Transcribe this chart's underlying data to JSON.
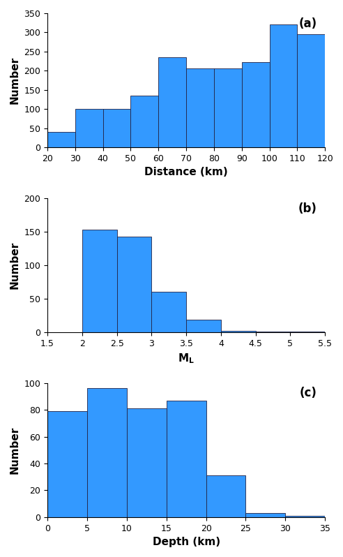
{
  "panel_a": {
    "bin_edges": [
      20,
      30,
      40,
      50,
      60,
      70,
      80,
      90,
      100,
      110,
      120
    ],
    "heights": [
      40,
      100,
      100,
      135,
      235,
      205,
      205,
      222,
      320,
      295
    ],
    "xlabel": "Distance (km)",
    "ylabel": "Number",
    "ylim": [
      0,
      350
    ],
    "xlim": [
      20,
      120
    ],
    "yticks": [
      0,
      50,
      100,
      150,
      200,
      250,
      300,
      350
    ],
    "xticks": [
      20,
      30,
      40,
      50,
      60,
      70,
      80,
      90,
      100,
      110,
      120
    ],
    "label": "(a)"
  },
  "panel_b": {
    "bin_edges": [
      1.5,
      2.0,
      2.5,
      3.0,
      3.5,
      4.0,
      4.5,
      5.0,
      5.5
    ],
    "heights": [
      0,
      153,
      143,
      60,
      19,
      2,
      1,
      1
    ],
    "xlabel": "M_L",
    "ylabel": "Number",
    "ylim": [
      0,
      200
    ],
    "xlim": [
      1.5,
      5.5
    ],
    "yticks": [
      0,
      50,
      100,
      150,
      200
    ],
    "xticks": [
      1.5,
      2.0,
      2.5,
      3.0,
      3.5,
      4.0,
      4.5,
      5.0,
      5.5
    ],
    "xtick_labels": [
      "1.5",
      "2",
      "2.5",
      "3",
      "3.5",
      "4",
      "4.5",
      "5",
      "5.5"
    ],
    "label": "(b)"
  },
  "panel_c": {
    "bin_edges": [
      0,
      5,
      10,
      15,
      20,
      25,
      30,
      35
    ],
    "heights": [
      79,
      96,
      81,
      87,
      31,
      3,
      1
    ],
    "xlabel": "Depth (km)",
    "ylabel": "Number",
    "ylim": [
      0,
      100
    ],
    "xlim": [
      0,
      35
    ],
    "yticks": [
      0,
      20,
      40,
      60,
      80,
      100
    ],
    "xticks": [
      0,
      5,
      10,
      15,
      20,
      25,
      30,
      35
    ],
    "label": "(c)"
  },
  "bar_color": "#3399FF",
  "bar_edgecolor": "#222244",
  "background_color": "#ffffff",
  "tick_fontsize": 9,
  "label_fontsize": 11,
  "panel_label_fontsize": 12
}
